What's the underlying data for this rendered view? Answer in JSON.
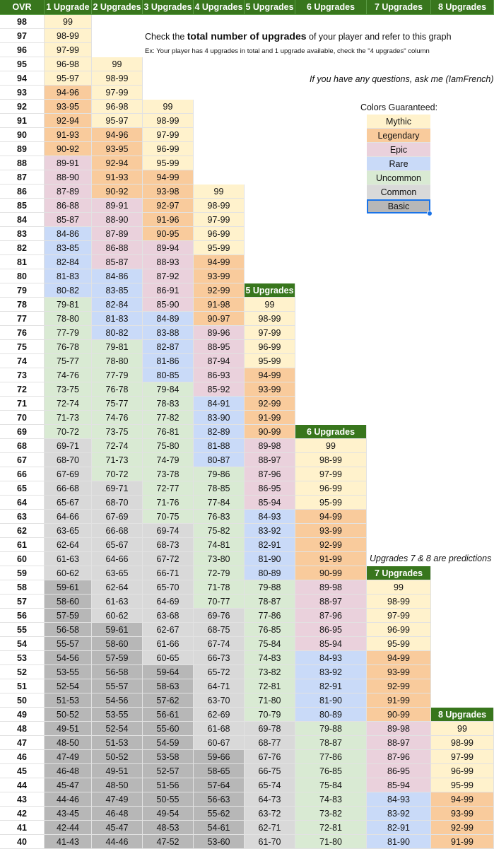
{
  "colors": {
    "header_bg": "#38761d",
    "Mythic": "#fff2cc",
    "Legendary": "#f9cb9c",
    "Epic": "#ead1dc",
    "Rare": "#c9daf8",
    "Uncommon": "#d9ead3",
    "Common": "#d9d9d9",
    "Basic": "#b7b7b7"
  },
  "header": [
    "OVR",
    "1 Upgrade",
    "2 Upgrades",
    "3 Upgrades",
    "4 Upgrades",
    "5 Upgrades",
    "6 Upgrades",
    "7 Upgrades",
    "8 Upgrades"
  ],
  "start_ovr": 98,
  "columns": [
    {
      "start_ovr": 98,
      "values": [
        "99",
        "98-99",
        "97-99",
        "96-98",
        "95-97",
        "94-96",
        "93-95",
        "92-94",
        "91-93",
        "90-92",
        "89-91",
        "88-90",
        "87-89",
        "86-88",
        "85-87",
        "84-86",
        "83-85",
        "82-84",
        "81-83",
        "80-82",
        "79-81",
        "78-80",
        "77-79",
        "76-78",
        "75-77",
        "74-76",
        "73-75",
        "72-74",
        "71-73",
        "70-72",
        "69-71",
        "68-70",
        "67-69",
        "66-68",
        "65-67",
        "64-66",
        "63-65",
        "62-64",
        "61-63",
        "60-62",
        "59-61",
        "58-60",
        "57-59",
        "56-58",
        "55-57",
        "54-56",
        "53-55",
        "52-54",
        "51-53",
        "50-52",
        "49-51",
        "48-50",
        "47-49",
        "46-48",
        "45-47",
        "44-46",
        "43-45",
        "42-44",
        "41-43"
      ],
      "tiers": [
        "Mythic",
        "Mythic",
        "Mythic",
        "Mythic",
        "Mythic",
        "Legendary",
        "Legendary",
        "Legendary",
        "Legendary",
        "Legendary",
        "Epic",
        "Epic",
        "Epic",
        "Epic",
        "Epic",
        "Rare",
        "Rare",
        "Rare",
        "Rare",
        "Rare",
        "Uncommon",
        "Uncommon",
        "Uncommon",
        "Uncommon",
        "Uncommon",
        "Uncommon",
        "Uncommon",
        "Uncommon",
        "Uncommon",
        "Uncommon",
        "Common",
        "Common",
        "Common",
        "Common",
        "Common",
        "Common",
        "Common",
        "Common",
        "Common",
        "Common",
        "Basic",
        "Basic",
        "Basic",
        "Basic",
        "Basic",
        "Basic",
        "Basic",
        "Basic",
        "Basic",
        "Basic",
        "Basic",
        "Basic",
        "Basic",
        "Basic",
        "Basic",
        "Basic",
        "Basic",
        "Basic",
        "Basic"
      ]
    },
    {
      "start_ovr": 95,
      "values": [
        "99",
        "98-99",
        "97-99",
        "96-98",
        "95-97",
        "94-96",
        "93-95",
        "92-94",
        "91-93",
        "90-92",
        "89-91",
        "88-90",
        "87-89",
        "86-88",
        "85-87",
        "84-86",
        "83-85",
        "82-84",
        "81-83",
        "80-82",
        "79-81",
        "78-80",
        "77-79",
        "76-78",
        "75-77",
        "74-76",
        "73-75",
        "72-74",
        "71-73",
        "70-72",
        "69-71",
        "68-70",
        "67-69",
        "66-68",
        "65-67",
        "64-66",
        "63-65",
        "62-64",
        "61-63",
        "60-62",
        "59-61",
        "58-60",
        "57-59",
        "56-58",
        "55-57",
        "54-56",
        "53-55",
        "52-54",
        "51-53",
        "50-52",
        "49-51",
        "48-50",
        "47-49",
        "46-48",
        "45-47",
        "44-46"
      ],
      "tiers": [
        "Mythic",
        "Mythic",
        "Mythic",
        "Mythic",
        "Mythic",
        "Legendary",
        "Legendary",
        "Legendary",
        "Legendary",
        "Legendary",
        "Epic",
        "Epic",
        "Epic",
        "Epic",
        "Epic",
        "Rare",
        "Rare",
        "Rare",
        "Rare",
        "Rare",
        "Uncommon",
        "Uncommon",
        "Uncommon",
        "Uncommon",
        "Uncommon",
        "Uncommon",
        "Uncommon",
        "Uncommon",
        "Uncommon",
        "Uncommon",
        "Common",
        "Common",
        "Common",
        "Common",
        "Common",
        "Common",
        "Common",
        "Common",
        "Common",
        "Common",
        "Basic",
        "Basic",
        "Basic",
        "Basic",
        "Basic",
        "Basic",
        "Basic",
        "Basic",
        "Basic",
        "Basic",
        "Basic",
        "Basic",
        "Basic",
        "Basic",
        "Basic",
        "Basic"
      ]
    },
    {
      "start_ovr": 92,
      "values": [
        "99",
        "98-99",
        "97-99",
        "96-99",
        "95-99",
        "94-99",
        "93-98",
        "92-97",
        "91-96",
        "90-95",
        "89-94",
        "88-93",
        "87-92",
        "86-91",
        "85-90",
        "84-89",
        "83-88",
        "82-87",
        "81-86",
        "80-85",
        "79-84",
        "78-83",
        "77-82",
        "76-81",
        "75-80",
        "74-79",
        "73-78",
        "72-77",
        "71-76",
        "70-75",
        "69-74",
        "68-73",
        "67-72",
        "66-71",
        "65-70",
        "64-69",
        "63-68",
        "62-67",
        "61-66",
        "60-65",
        "59-64",
        "58-63",
        "57-62",
        "56-61",
        "55-60",
        "54-59",
        "53-58",
        "52-57",
        "51-56",
        "50-55",
        "49-54",
        "48-53",
        "47-52"
      ],
      "tiers": [
        "Mythic",
        "Mythic",
        "Mythic",
        "Mythic",
        "Mythic",
        "Legendary",
        "Legendary",
        "Legendary",
        "Legendary",
        "Legendary",
        "Epic",
        "Epic",
        "Epic",
        "Epic",
        "Epic",
        "Rare",
        "Rare",
        "Rare",
        "Rare",
        "Rare",
        "Uncommon",
        "Uncommon",
        "Uncommon",
        "Uncommon",
        "Uncommon",
        "Uncommon",
        "Uncommon",
        "Uncommon",
        "Uncommon",
        "Uncommon",
        "Common",
        "Common",
        "Common",
        "Common",
        "Common",
        "Common",
        "Common",
        "Common",
        "Common",
        "Common",
        "Basic",
        "Basic",
        "Basic",
        "Basic",
        "Basic",
        "Basic",
        "Basic",
        "Basic",
        "Basic",
        "Basic",
        "Basic",
        "Basic",
        "Basic"
      ]
    },
    {
      "start_ovr": 86,
      "values": [
        "99",
        "98-99",
        "97-99",
        "96-99",
        "95-99",
        "94-99",
        "93-99",
        "92-99",
        "91-98",
        "90-97",
        "89-96",
        "88-95",
        "87-94",
        "86-93",
        "85-92",
        "84-91",
        "83-90",
        "82-89",
        "81-88",
        "80-87",
        "79-86",
        "78-85",
        "77-84",
        "76-83",
        "75-82",
        "74-81",
        "73-80",
        "72-79",
        "71-78",
        "70-77",
        "69-76",
        "68-75",
        "67-74",
        "66-73",
        "65-72",
        "64-71",
        "63-70",
        "62-69",
        "61-68",
        "60-67",
        "59-66",
        "58-65",
        "57-64",
        "56-63",
        "55-62",
        "54-61",
        "53-60"
      ],
      "tiers": [
        "Mythic",
        "Mythic",
        "Mythic",
        "Mythic",
        "Mythic",
        "Legendary",
        "Legendary",
        "Legendary",
        "Legendary",
        "Legendary",
        "Epic",
        "Epic",
        "Epic",
        "Epic",
        "Epic",
        "Rare",
        "Rare",
        "Rare",
        "Rare",
        "Rare",
        "Uncommon",
        "Uncommon",
        "Uncommon",
        "Uncommon",
        "Uncommon",
        "Uncommon",
        "Uncommon",
        "Uncommon",
        "Uncommon",
        "Uncommon",
        "Common",
        "Common",
        "Common",
        "Common",
        "Common",
        "Common",
        "Common",
        "Common",
        "Common",
        "Common",
        "Basic",
        "Basic",
        "Basic",
        "Basic",
        "Basic",
        "Basic",
        "Basic"
      ]
    },
    {
      "start_ovr": 78,
      "header_ovr": 79,
      "values": [
        "99",
        "98-99",
        "97-99",
        "96-99",
        "95-99",
        "94-99",
        "93-99",
        "92-99",
        "91-99",
        "90-99",
        "89-98",
        "88-97",
        "87-96",
        "86-95",
        "85-94",
        "84-93",
        "83-92",
        "82-91",
        "81-90",
        "80-89",
        "79-88",
        "78-87",
        "77-86",
        "76-85",
        "75-84",
        "74-83",
        "73-82",
        "72-81",
        "71-80",
        "70-79",
        "69-78",
        "68-77",
        "67-76",
        "66-75",
        "65-74",
        "64-73",
        "63-72",
        "62-71",
        "61-70"
      ],
      "tiers": [
        "Mythic",
        "Mythic",
        "Mythic",
        "Mythic",
        "Mythic",
        "Legendary",
        "Legendary",
        "Legendary",
        "Legendary",
        "Legendary",
        "Epic",
        "Epic",
        "Epic",
        "Epic",
        "Epic",
        "Rare",
        "Rare",
        "Rare",
        "Rare",
        "Rare",
        "Uncommon",
        "Uncommon",
        "Uncommon",
        "Uncommon",
        "Uncommon",
        "Uncommon",
        "Uncommon",
        "Uncommon",
        "Uncommon",
        "Uncommon",
        "Common",
        "Common",
        "Common",
        "Common",
        "Common",
        "Common",
        "Common",
        "Common",
        "Common"
      ]
    },
    {
      "start_ovr": 68,
      "header_ovr": 69,
      "values": [
        "99",
        "98-99",
        "97-99",
        "96-99",
        "95-99",
        "94-99",
        "93-99",
        "92-99",
        "91-99",
        "90-99",
        "89-98",
        "88-97",
        "87-96",
        "86-95",
        "85-94",
        "84-93",
        "83-92",
        "82-91",
        "81-90",
        "80-89",
        "79-88",
        "78-87",
        "77-86",
        "76-85",
        "75-84",
        "74-83",
        "73-82",
        "72-81",
        "71-80"
      ],
      "tiers": [
        "Mythic",
        "Mythic",
        "Mythic",
        "Mythic",
        "Mythic",
        "Legendary",
        "Legendary",
        "Legendary",
        "Legendary",
        "Legendary",
        "Epic",
        "Epic",
        "Epic",
        "Epic",
        "Epic",
        "Rare",
        "Rare",
        "Rare",
        "Rare",
        "Rare",
        "Uncommon",
        "Uncommon",
        "Uncommon",
        "Uncommon",
        "Uncommon",
        "Uncommon",
        "Uncommon",
        "Uncommon",
        "Uncommon"
      ]
    },
    {
      "start_ovr": 58,
      "header_ovr": 59,
      "values": [
        "99",
        "98-99",
        "97-99",
        "96-99",
        "95-99",
        "94-99",
        "93-99",
        "92-99",
        "91-99",
        "90-99",
        "89-98",
        "88-97",
        "87-96",
        "86-95",
        "85-94",
        "84-93",
        "83-92",
        "82-91",
        "81-90"
      ],
      "tiers": [
        "Mythic",
        "Mythic",
        "Mythic",
        "Mythic",
        "Mythic",
        "Legendary",
        "Legendary",
        "Legendary",
        "Legendary",
        "Legendary",
        "Epic",
        "Epic",
        "Epic",
        "Epic",
        "Epic",
        "Rare",
        "Rare",
        "Rare",
        "Rare"
      ]
    },
    {
      "start_ovr": 48,
      "header_ovr": 49,
      "values": [
        "99",
        "98-99",
        "97-99",
        "96-99",
        "95-99",
        "94-99",
        "93-99",
        "92-99",
        "91-99"
      ],
      "tiers": [
        "Mythic",
        "Mythic",
        "Mythic",
        "Mythic",
        "Mythic",
        "Legendary",
        "Legendary",
        "Legendary",
        "Legendary"
      ]
    }
  ],
  "notes": {
    "main_prefix": "Check the ",
    "main_bold": "total number of upgrades",
    "main_suffix": " of your player and refer to this graph",
    "example": "Ex: Your player has 4 upgrades in total and 1 upgrade available, check the \"4 upgrades\" column",
    "questions": "If you have any questions, ask me (IamFrench)",
    "predictions": "Upgrades 7 & 8  are predictions"
  },
  "legend": {
    "title": "Colors Guaranteed:",
    "items": [
      "Mythic",
      "Legendary",
      "Epic",
      "Rare",
      "Uncommon",
      "Common",
      "Basic"
    ],
    "selected": "Basic"
  }
}
